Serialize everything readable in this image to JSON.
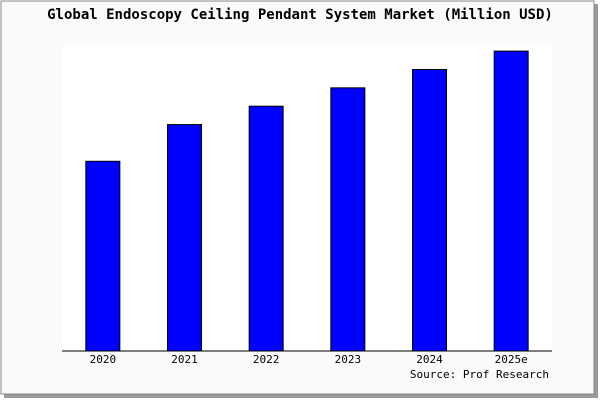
{
  "chart_data": {
    "type": "bar",
    "title": "Global Endoscopy Ceiling Pendant System Market (Million USD)",
    "categories": [
      "2020",
      "2021",
      "2022",
      "2023",
      "2024",
      "2025e"
    ],
    "values": [
      62,
      74,
      80,
      86,
      92,
      98
    ],
    "color": "#0000ff",
    "ylim": [
      0,
      100
    ],
    "source": "Source: Prof Research"
  }
}
